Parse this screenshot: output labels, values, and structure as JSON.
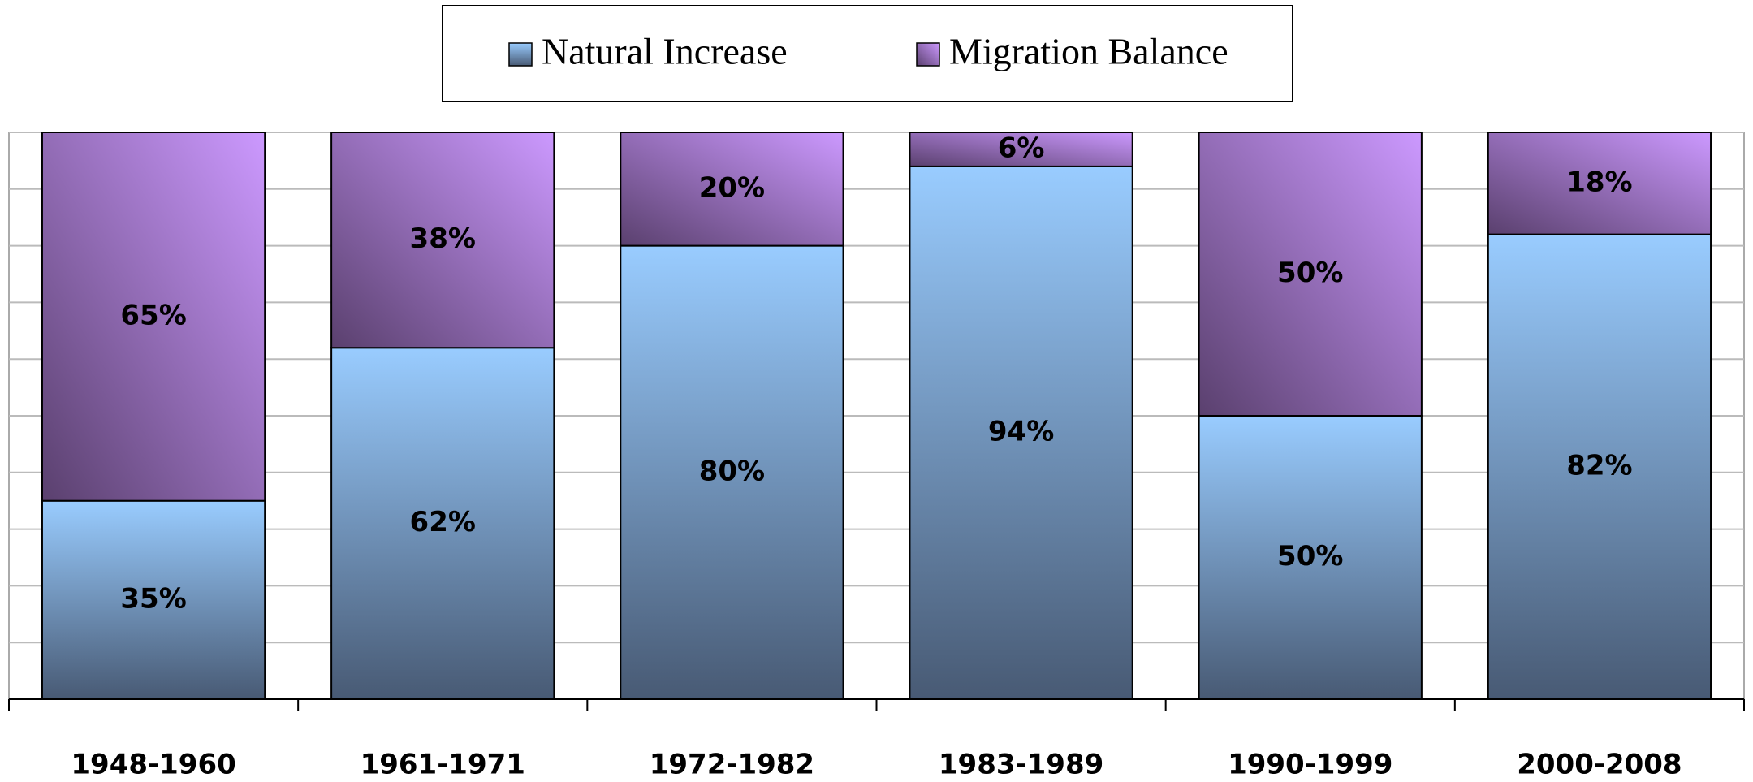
{
  "chart_data": {
    "type": "stacked_bar",
    "categories": [
      "1948-1960",
      "1961-1971",
      "1972-1982",
      "1983-1989",
      "1990-1999",
      "2000-2008"
    ],
    "series": [
      {
        "name": "Natural Increase",
        "color": "#99ccff",
        "values": [
          35,
          62,
          80,
          94,
          50,
          82
        ],
        "value_labels": [
          "35%",
          "62%",
          "80%",
          "94%",
          "50%",
          "82%"
        ]
      },
      {
        "name": "Migration Balance",
        "color": "#cc99ff",
        "values": [
          65,
          38,
          20,
          6,
          50,
          18
        ],
        "value_labels": [
          "65%",
          "38%",
          "20%",
          "6%",
          "50%",
          "18%"
        ]
      }
    ],
    "ylim": [
      0,
      100
    ],
    "yticks": [
      0,
      10,
      20,
      30,
      40,
      50,
      60,
      70,
      80,
      90,
      100
    ],
    "grid": true,
    "legend": "top"
  }
}
